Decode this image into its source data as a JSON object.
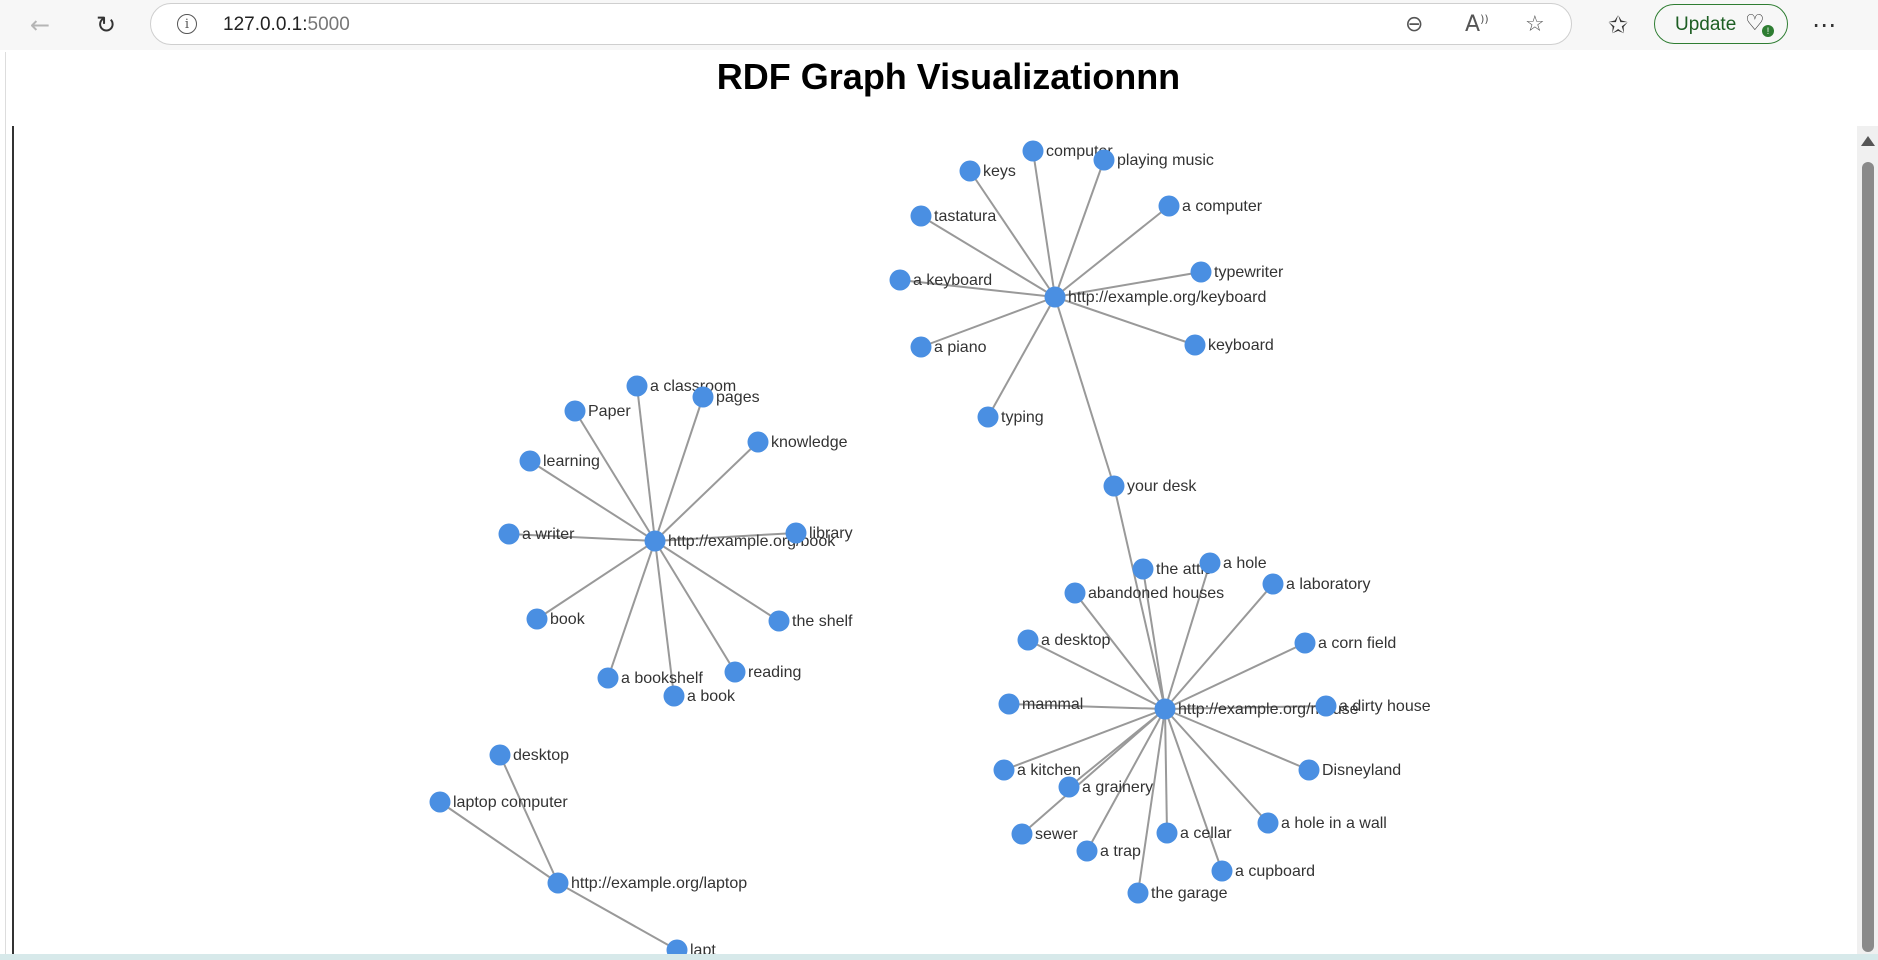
{
  "browser": {
    "url_host": "127.0.0.1:",
    "url_port": "5000",
    "update_label": "Update",
    "icons": {
      "back": "back-arrow-icon",
      "reload": "reload-icon",
      "info": "info-icon",
      "zoom": "zoom-out-icon",
      "read_aloud": "read-aloud-icon",
      "favorite": "star-icon",
      "favorites": "favorites-icon",
      "more": "more-icon"
    }
  },
  "page": {
    "title": "RDF Graph Visualizationnn"
  },
  "graph": {
    "nodes": [
      {
        "id": "keyboard_hub",
        "label": "http://example.org/keyboard"
      },
      {
        "id": "computer",
        "label": "computer"
      },
      {
        "id": "playing_music",
        "label": "playing music"
      },
      {
        "id": "keys",
        "label": "keys"
      },
      {
        "id": "a_computer",
        "label": "a computer"
      },
      {
        "id": "tastatura",
        "label": "tastatura"
      },
      {
        "id": "typewriter",
        "label": "typewriter"
      },
      {
        "id": "a_keyboard",
        "label": "a keyboard"
      },
      {
        "id": "keyboard",
        "label": "keyboard"
      },
      {
        "id": "a_piano",
        "label": "a piano"
      },
      {
        "id": "typing",
        "label": "typing"
      },
      {
        "id": "your_desk",
        "label": "your desk"
      },
      {
        "id": "book_hub",
        "label": "http://example.org/book"
      },
      {
        "id": "a_classroom",
        "label": "a classroom"
      },
      {
        "id": "pages",
        "label": "pages"
      },
      {
        "id": "paper",
        "label": "Paper"
      },
      {
        "id": "knowledge",
        "label": "knowledge"
      },
      {
        "id": "learning",
        "label": "learning"
      },
      {
        "id": "a_writer",
        "label": "a writer"
      },
      {
        "id": "library",
        "label": "library"
      },
      {
        "id": "book",
        "label": "book"
      },
      {
        "id": "the_shelf",
        "label": "the shelf"
      },
      {
        "id": "reading",
        "label": "reading"
      },
      {
        "id": "a_bookshelf",
        "label": "a bookshelf"
      },
      {
        "id": "a_book",
        "label": "a book"
      },
      {
        "id": "mouse_hub",
        "label": "http://example.org/mouse"
      },
      {
        "id": "the_attic",
        "label": "the attic"
      },
      {
        "id": "a_hole",
        "label": "a hole"
      },
      {
        "id": "abandoned_houses",
        "label": "abandoned houses"
      },
      {
        "id": "a_laboratory",
        "label": "a laboratory"
      },
      {
        "id": "a_desktop",
        "label": "a desktop"
      },
      {
        "id": "a_corn_field",
        "label": "a corn field"
      },
      {
        "id": "mammal",
        "label": "mammal"
      },
      {
        "id": "a_dirty_house",
        "label": "a dirty house"
      },
      {
        "id": "a_kitchen",
        "label": "a kitchen"
      },
      {
        "id": "disneyland",
        "label": "Disneyland"
      },
      {
        "id": "a_grainery",
        "label": "a grainery"
      },
      {
        "id": "a_hole_in_a_wall",
        "label": "a hole in a wall"
      },
      {
        "id": "sewer",
        "label": "sewer"
      },
      {
        "id": "a_cellar",
        "label": "a cellar"
      },
      {
        "id": "a_trap",
        "label": "a trap"
      },
      {
        "id": "a_cupboard",
        "label": "a cupboard"
      },
      {
        "id": "the_garage",
        "label": "the garage"
      },
      {
        "id": "laptop_hub",
        "label": "http://example.org/laptop"
      },
      {
        "id": "desktop",
        "label": "desktop"
      },
      {
        "id": "laptop_computer",
        "label": "laptop computer"
      },
      {
        "id": "laptop_offscreen",
        "label": "lapt"
      }
    ],
    "edges": [
      [
        "keyboard_hub",
        "computer"
      ],
      [
        "keyboard_hub",
        "playing_music"
      ],
      [
        "keyboard_hub",
        "keys"
      ],
      [
        "keyboard_hub",
        "a_computer"
      ],
      [
        "keyboard_hub",
        "tastatura"
      ],
      [
        "keyboard_hub",
        "typewriter"
      ],
      [
        "keyboard_hub",
        "a_keyboard"
      ],
      [
        "keyboard_hub",
        "keyboard"
      ],
      [
        "keyboard_hub",
        "a_piano"
      ],
      [
        "keyboard_hub",
        "typing"
      ],
      [
        "keyboard_hub",
        "your_desk"
      ],
      [
        "your_desk",
        "mouse_hub"
      ],
      [
        "book_hub",
        "a_classroom"
      ],
      [
        "book_hub",
        "pages"
      ],
      [
        "book_hub",
        "paper"
      ],
      [
        "book_hub",
        "knowledge"
      ],
      [
        "book_hub",
        "learning"
      ],
      [
        "book_hub",
        "a_writer"
      ],
      [
        "book_hub",
        "library"
      ],
      [
        "book_hub",
        "book"
      ],
      [
        "book_hub",
        "the_shelf"
      ],
      [
        "book_hub",
        "reading"
      ],
      [
        "book_hub",
        "a_bookshelf"
      ],
      [
        "book_hub",
        "a_book"
      ],
      [
        "mouse_hub",
        "the_attic"
      ],
      [
        "mouse_hub",
        "a_hole"
      ],
      [
        "mouse_hub",
        "abandoned_houses"
      ],
      [
        "mouse_hub",
        "a_laboratory"
      ],
      [
        "mouse_hub",
        "a_desktop"
      ],
      [
        "mouse_hub",
        "a_corn_field"
      ],
      [
        "mouse_hub",
        "mammal"
      ],
      [
        "mouse_hub",
        "a_dirty_house"
      ],
      [
        "mouse_hub",
        "a_kitchen"
      ],
      [
        "mouse_hub",
        "disneyland"
      ],
      [
        "mouse_hub",
        "a_grainery"
      ],
      [
        "mouse_hub",
        "a_hole_in_a_wall"
      ],
      [
        "mouse_hub",
        "sewer"
      ],
      [
        "mouse_hub",
        "a_cellar"
      ],
      [
        "mouse_hub",
        "a_trap"
      ],
      [
        "mouse_hub",
        "a_cupboard"
      ],
      [
        "mouse_hub",
        "the_garage"
      ],
      [
        "laptop_hub",
        "desktop"
      ],
      [
        "laptop_hub",
        "laptop_computer"
      ],
      [
        "laptop_hub",
        "laptop_offscreen"
      ]
    ]
  }
}
